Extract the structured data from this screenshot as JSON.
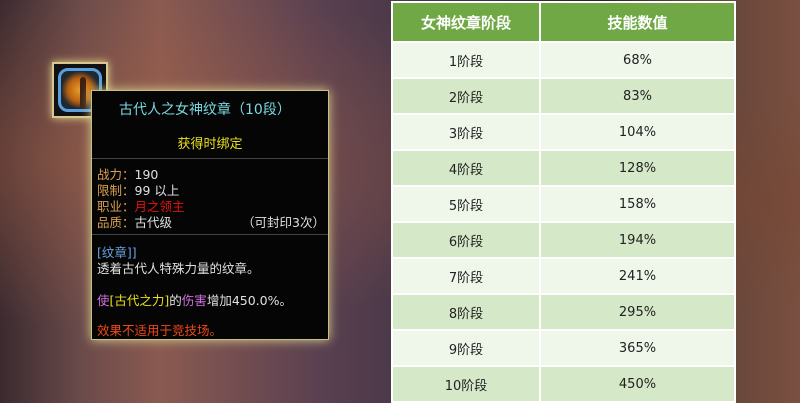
{
  "tooltip": {
    "item_name": "古代人之女神纹章（10段）",
    "bind_text": "获得时绑定",
    "power_label": "战力：",
    "power_value": "190",
    "limit_label": "限制：",
    "limit_value": "99 以上",
    "class_label": "职业：",
    "class_value": "月之领主",
    "quality_label": "品质：",
    "quality_value": "古代级",
    "seal_text": "（可封印3次）",
    "category": "[纹章]]",
    "description": "透着古代人特殊力量的纹章。",
    "effect_prefix": "使",
    "effect_skill": "[古代之力]",
    "effect_mid": "的",
    "effect_type": "伤害",
    "effect_suffix": "增加450.0%。",
    "restriction": "效果不适用于竞技场。",
    "colors": {
      "title": "#7ad8e0",
      "bind": "#e8e020",
      "class": "#e81010",
      "restriction": "#f04818"
    }
  },
  "table": {
    "headers": [
      "女神纹章阶段",
      "技能数值"
    ],
    "rows": [
      [
        "1阶段",
        "68%"
      ],
      [
        "2阶段",
        "83%"
      ],
      [
        "3阶段",
        "104%"
      ],
      [
        "4阶段",
        "128%"
      ],
      [
        "5阶段",
        "158%"
      ],
      [
        "6阶段",
        "194%"
      ],
      [
        "7阶段",
        "241%"
      ],
      [
        "8阶段",
        "295%"
      ],
      [
        "9阶段",
        "365%"
      ],
      [
        "10阶段",
        "450%"
      ]
    ],
    "header_color": "#6fa844"
  }
}
